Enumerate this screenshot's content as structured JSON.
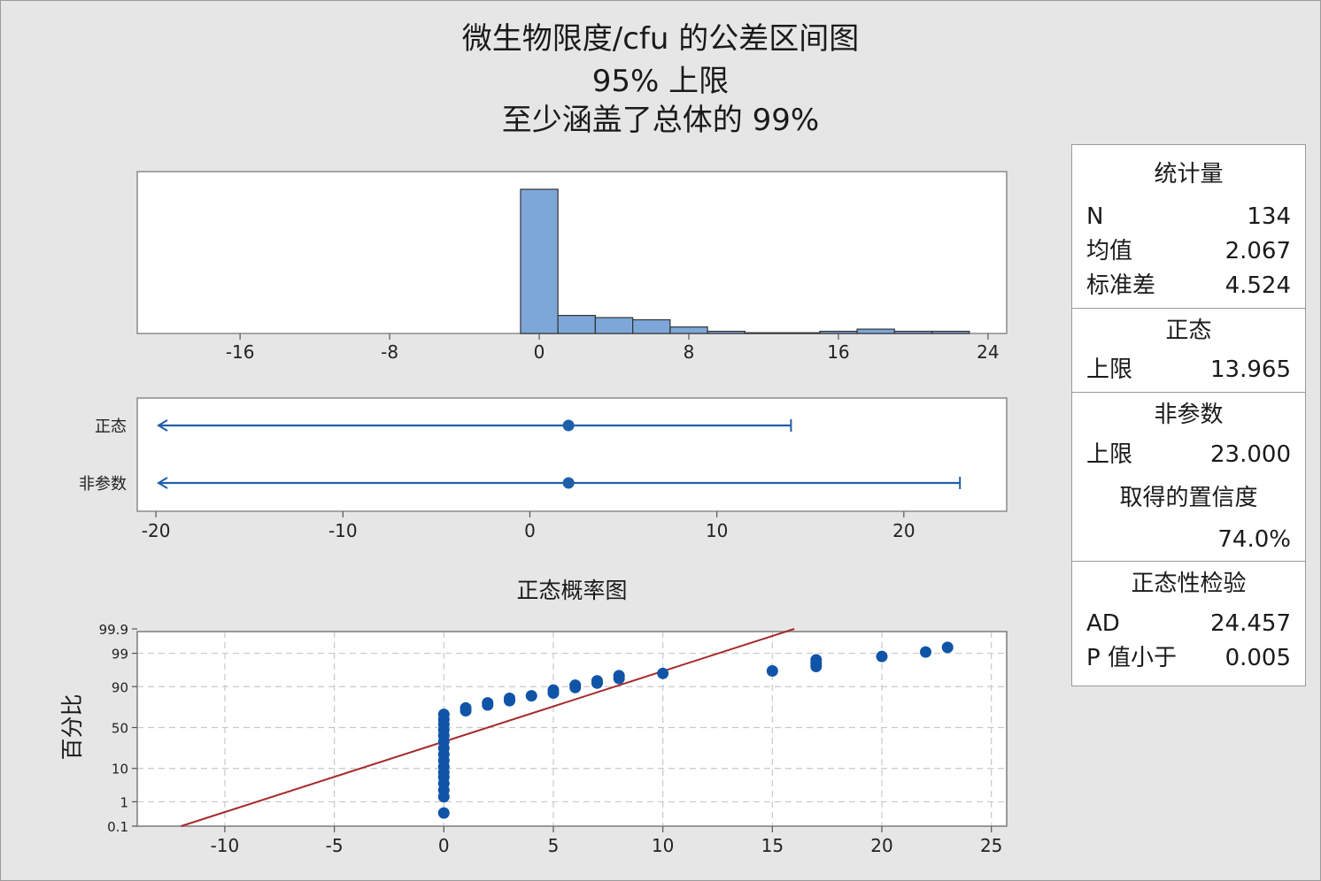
{
  "titles": {
    "line1": "微生物限度/cfu 的公差区间图",
    "line2": "95% 上限",
    "line3": "至少涵盖了总体的 99%"
  },
  "stats_box": {
    "header": "统计量",
    "rows": [
      {
        "label": "N",
        "value": "134"
      },
      {
        "label": "均值",
        "value": "2.067"
      },
      {
        "label": "标准差",
        "value": "4.524"
      }
    ],
    "normal": {
      "header": "正态",
      "label": "上限",
      "value": "13.965"
    },
    "nonparam": {
      "header": "非参数",
      "label": "上限",
      "value": "23.000",
      "conf_label": "取得的置信度",
      "conf_value": "74.0%"
    },
    "normality": {
      "header": "正态性检验",
      "rows": [
        {
          "label": "AD",
          "value": "24.457"
        },
        {
          "label": "P 值小于",
          "value": "0.005"
        }
      ]
    }
  },
  "chart_data": [
    {
      "type": "bar",
      "subtype": "histogram",
      "xlim": [
        -21.5,
        25
      ],
      "xticks": [
        -16,
        -8,
        0,
        8,
        16,
        24
      ],
      "bins": [
        {
          "x0": -1,
          "x1": 1,
          "height": 100
        },
        {
          "x0": 1,
          "x1": 3,
          "height": 12.5
        },
        {
          "x0": 3,
          "x1": 5,
          "height": 11
        },
        {
          "x0": 5,
          "x1": 7,
          "height": 9.5
        },
        {
          "x0": 7,
          "x1": 9,
          "height": 4.5
        },
        {
          "x0": 9,
          "x1": 11,
          "height": 1.5
        },
        {
          "x0": 11,
          "x1": 13,
          "height": 0.5
        },
        {
          "x0": 13,
          "x1": 15,
          "height": 0.5
        },
        {
          "x0": 15,
          "x1": 17,
          "height": 1.5
        },
        {
          "x0": 17,
          "x1": 19,
          "height": 3
        },
        {
          "x0": 19,
          "x1": 21,
          "height": 1.5
        },
        {
          "x0": 21,
          "x1": 23,
          "height": 1.5
        }
      ],
      "color": "#7da7d9"
    },
    {
      "type": "interval",
      "xlim": [
        -21,
        25.5
      ],
      "xticks": [
        -20,
        -10,
        0,
        10,
        20
      ],
      "rows": [
        {
          "label": "正态",
          "mean": 2.067,
          "upper": 13.965
        },
        {
          "label": "非参数",
          "mean": 2.067,
          "upper": 23.0
        }
      ],
      "color": "#1f5fa8"
    },
    {
      "type": "scatter",
      "title": "正态概率图",
      "ylabel": "百分比",
      "xlim": [
        -14,
        25.7
      ],
      "xticks": [
        -10,
        -5,
        0,
        5,
        10,
        15,
        20,
        25
      ],
      "yticks": [
        0.1,
        1,
        10,
        50,
        90,
        99,
        99.9
      ],
      "fit_line": {
        "from": [
          -12,
          0.1
        ],
        "to": [
          16,
          99.9
        ],
        "color": "#a52a2a"
      },
      "points": [
        {
          "x": 0,
          "y": 0.37
        },
        {
          "x": 0,
          "y": 1.5
        },
        {
          "x": 0,
          "y": 2.5
        },
        {
          "x": 0,
          "y": 4
        },
        {
          "x": 0,
          "y": 6
        },
        {
          "x": 0,
          "y": 8
        },
        {
          "x": 0,
          "y": 11
        },
        {
          "x": 0,
          "y": 15
        },
        {
          "x": 0,
          "y": 20
        },
        {
          "x": 0,
          "y": 26
        },
        {
          "x": 0,
          "y": 33
        },
        {
          "x": 0,
          "y": 40
        },
        {
          "x": 0,
          "y": 47
        },
        {
          "x": 0,
          "y": 54
        },
        {
          "x": 0,
          "y": 60
        },
        {
          "x": 0,
          "y": 66
        },
        {
          "x": 1,
          "y": 70
        },
        {
          "x": 1,
          "y": 73
        },
        {
          "x": 2,
          "y": 76
        },
        {
          "x": 2,
          "y": 78
        },
        {
          "x": 3,
          "y": 80
        },
        {
          "x": 3,
          "y": 82
        },
        {
          "x": 4,
          "y": 84
        },
        {
          "x": 5,
          "y": 86
        },
        {
          "x": 5,
          "y": 88
        },
        {
          "x": 6,
          "y": 89.5
        },
        {
          "x": 6,
          "y": 90.8
        },
        {
          "x": 7,
          "y": 91.8
        },
        {
          "x": 7,
          "y": 92.8
        },
        {
          "x": 8,
          "y": 93.8
        },
        {
          "x": 8,
          "y": 94.8
        },
        {
          "x": 10,
          "y": 95.5
        },
        {
          "x": 15,
          "y": 96.2
        },
        {
          "x": 17,
          "y": 97.2
        },
        {
          "x": 17,
          "y": 97.8
        },
        {
          "x": 17,
          "y": 98.3
        },
        {
          "x": 20,
          "y": 98.7
        },
        {
          "x": 22,
          "y": 99.1
        },
        {
          "x": 23,
          "y": 99.4
        }
      ],
      "point_color": "#1054a8"
    }
  ]
}
